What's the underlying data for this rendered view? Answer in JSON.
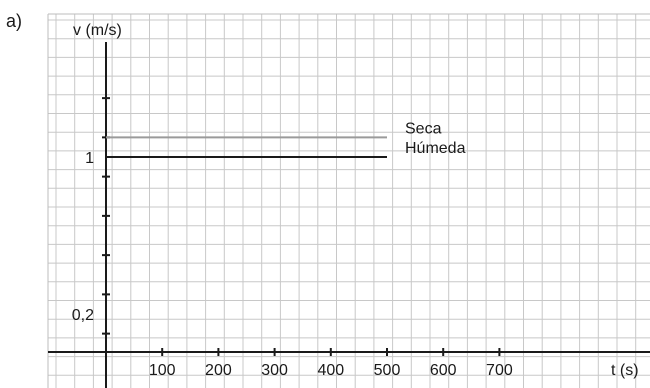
{
  "panel_label": "a)",
  "chart_data": {
    "type": "line",
    "xlabel": "t (s)",
    "ylabel": "v (m/s)",
    "x_ticks": [
      100,
      200,
      300,
      400,
      500,
      600,
      700
    ],
    "x_tick_labels": [
      "100",
      "200",
      "300",
      "400",
      "500",
      "600",
      "700"
    ],
    "y_tick_labels": [
      "1",
      "0,2"
    ],
    "y_tick_values": [
      1,
      0.2
    ],
    "ylim": [
      0,
      1.3
    ],
    "xlim": [
      0,
      750
    ],
    "grid": true,
    "series": [
      {
        "name": "Seca",
        "x": [
          0,
          500
        ],
        "y": [
          1.1,
          1.1
        ],
        "color": "#9a9a9a"
      },
      {
        "name": "Húmeda",
        "x": [
          0,
          500
        ],
        "y": [
          1.0,
          1.0
        ],
        "color": "#1a1a1a"
      }
    ]
  }
}
